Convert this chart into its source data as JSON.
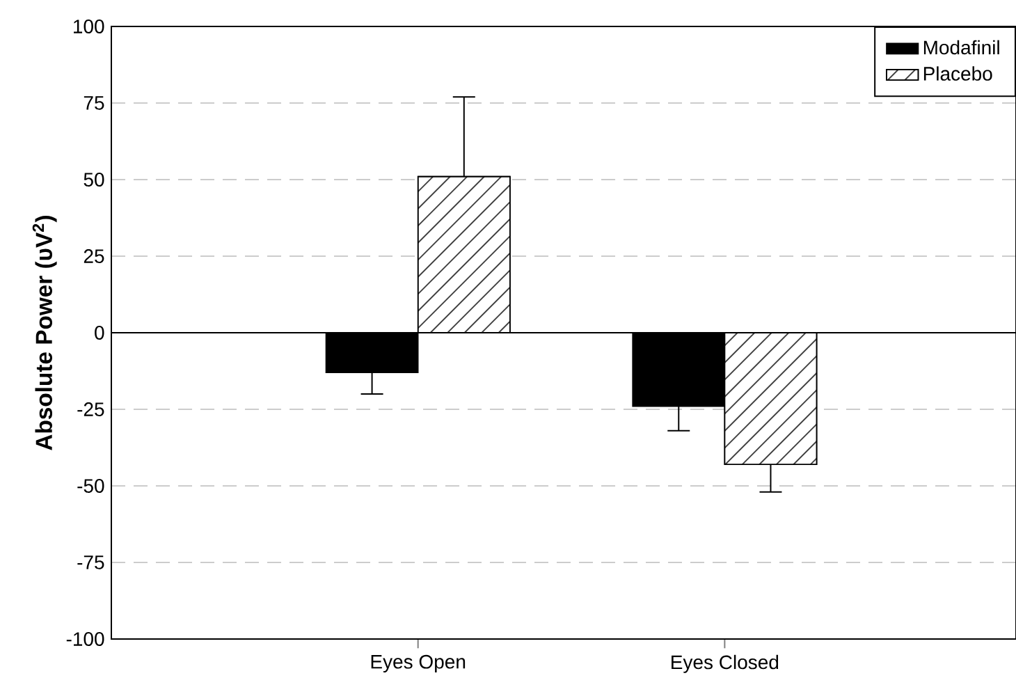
{
  "chart_data": {
    "type": "bar",
    "ylabel": "Absolute Power (υV$^{2}$)",
    "categories": [
      "Eyes Open",
      "Eyes Closed"
    ],
    "series": [
      {
        "name": "Modafinil",
        "color": "#000000",
        "values": [
          -13,
          -24
        ],
        "errors": [
          [
            -20,
            -13
          ],
          [
            -32,
            -24
          ]
        ]
      },
      {
        "name": "Placebo",
        "color": "#ffffff",
        "values": [
          51,
          -43
        ],
        "errors": [
          [
            51,
            77
          ],
          [
            -52,
            -43
          ]
        ]
      }
    ],
    "ylim": [
      -100,
      100
    ],
    "yticks": [
      -100,
      -75,
      -50,
      -25,
      0,
      25,
      50,
      75,
      100
    ],
    "grid": "y",
    "legend": "top right"
  }
}
